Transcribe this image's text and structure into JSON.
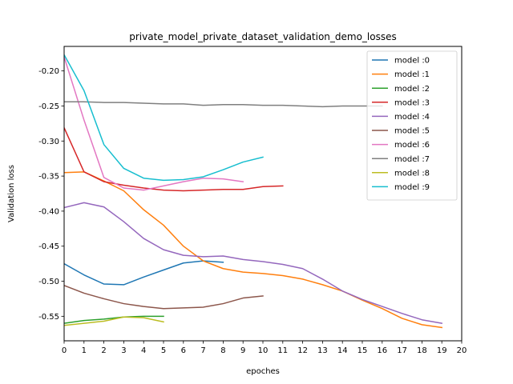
{
  "chart_data": {
    "type": "line",
    "title": "private_model_private_dataset_validation_demo_losses",
    "xlabel": "epoches",
    "ylabel": "Validation loss",
    "xlim": [
      0,
      20
    ],
    "ylim": [
      -0.585,
      -0.165
    ],
    "xticks": [
      "0",
      "1",
      "2",
      "3",
      "4",
      "5",
      "6",
      "7",
      "8",
      "9",
      "10",
      "11",
      "12",
      "13",
      "14",
      "15",
      "16",
      "17",
      "18",
      "19",
      "20"
    ],
    "yticks": [
      "-0.20",
      "-0.25",
      "-0.30",
      "-0.35",
      "-0.40",
      "-0.45",
      "-0.50",
      "-0.55"
    ],
    "ytick_values": [
      -0.2,
      -0.25,
      -0.3,
      -0.35,
      -0.4,
      -0.45,
      -0.5,
      -0.55
    ],
    "grid": false,
    "legend_position": "top-right",
    "series": [
      {
        "name": "model :0",
        "color": "#1f77b4",
        "x": [
          0,
          1,
          2,
          3,
          4,
          5,
          6,
          7,
          8
        ],
        "values": [
          -0.475,
          -0.491,
          -0.504,
          -0.505,
          -0.494,
          -0.484,
          -0.474,
          -0.471,
          -0.473
        ]
      },
      {
        "name": "model :1",
        "color": "#ff7f0e",
        "x": [
          0,
          1,
          2,
          3,
          4,
          5,
          6,
          7,
          8,
          9,
          10,
          11,
          12,
          13,
          14,
          15,
          16,
          17,
          18,
          19
        ],
        "values": [
          -0.345,
          -0.344,
          -0.357,
          -0.371,
          -0.398,
          -0.42,
          -0.45,
          -0.471,
          -0.482,
          -0.487,
          -0.489,
          -0.492,
          -0.497,
          -0.505,
          -0.514,
          -0.527,
          -0.539,
          -0.553,
          -0.562,
          -0.566
        ]
      },
      {
        "name": "model :2",
        "color": "#2ca02c",
        "x": [
          0,
          1,
          2,
          3,
          4,
          5
        ],
        "values": [
          -0.56,
          -0.556,
          -0.554,
          -0.551,
          -0.55,
          -0.55
        ]
      },
      {
        "name": "model :3",
        "color": "#d62728",
        "x": [
          0,
          1,
          2,
          3,
          4,
          5,
          6,
          7,
          8,
          9,
          10,
          11
        ],
        "values": [
          -0.281,
          -0.344,
          -0.358,
          -0.363,
          -0.367,
          -0.37,
          -0.371,
          -0.37,
          -0.369,
          -0.369,
          -0.365,
          -0.364
        ]
      },
      {
        "name": "model :4",
        "color": "#9467bd",
        "x": [
          0,
          1,
          2,
          3,
          4,
          5,
          6,
          7,
          8,
          9,
          10,
          11,
          12,
          13,
          14,
          15,
          16,
          17,
          18,
          19
        ],
        "values": [
          -0.395,
          -0.388,
          -0.394,
          -0.415,
          -0.439,
          -0.455,
          -0.463,
          -0.465,
          -0.464,
          -0.469,
          -0.472,
          -0.476,
          -0.482,
          -0.497,
          -0.514,
          -0.526,
          -0.536,
          -0.546,
          -0.555,
          -0.56
        ]
      },
      {
        "name": "model :5",
        "color": "#8c564b",
        "x": [
          0,
          1,
          2,
          3,
          4,
          5,
          6,
          7,
          8,
          9,
          10
        ],
        "values": [
          -0.506,
          -0.517,
          -0.525,
          -0.532,
          -0.536,
          -0.539,
          -0.538,
          -0.537,
          -0.532,
          -0.524,
          -0.521
        ]
      },
      {
        "name": "model :6",
        "color": "#e377c2",
        "x": [
          0,
          1,
          2,
          3,
          4,
          5,
          6,
          7,
          8,
          9
        ],
        "values": [
          -0.18,
          -0.27,
          -0.352,
          -0.367,
          -0.37,
          -0.364,
          -0.358,
          -0.353,
          -0.354,
          -0.358
        ]
      },
      {
        "name": "model :7",
        "color": "#7f7f7f",
        "x": [
          0,
          1,
          2,
          3,
          4,
          5,
          6,
          7,
          8,
          9,
          10,
          11,
          12,
          13,
          14,
          15,
          16
        ],
        "values": [
          -0.244,
          -0.244,
          -0.245,
          -0.245,
          -0.246,
          -0.247,
          -0.247,
          -0.249,
          -0.248,
          -0.248,
          -0.249,
          -0.249,
          -0.25,
          -0.251,
          -0.25,
          -0.25,
          -0.25
        ]
      },
      {
        "name": "model :8",
        "color": "#bcbd22",
        "x": [
          0,
          1,
          2,
          3,
          4,
          5
        ],
        "values": [
          -0.563,
          -0.56,
          -0.557,
          -0.551,
          -0.552,
          -0.558
        ]
      },
      {
        "name": "model :9",
        "color": "#17becf",
        "x": [
          0,
          1,
          2,
          3,
          4,
          5,
          6,
          7,
          8,
          9,
          10
        ],
        "values": [
          -0.177,
          -0.228,
          -0.305,
          -0.339,
          -0.353,
          -0.356,
          -0.355,
          -0.351,
          -0.341,
          -0.33,
          -0.323
        ]
      }
    ]
  }
}
